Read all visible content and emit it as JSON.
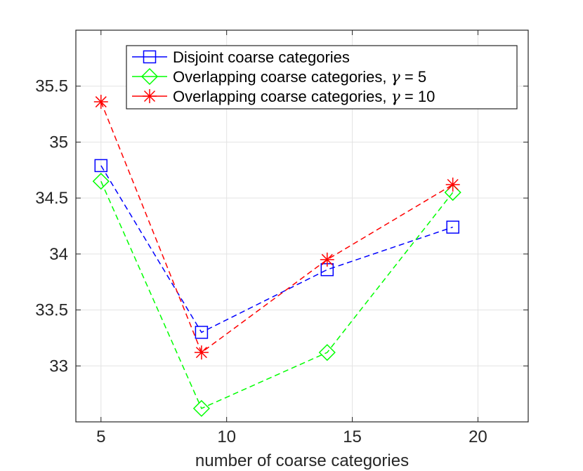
{
  "chart_data": {
    "type": "line",
    "title": "",
    "xlabel": "number of coarse categories",
    "ylabel": "",
    "xlim": [
      4,
      22
    ],
    "ylim": [
      32.5,
      36
    ],
    "xticks": [
      5,
      10,
      15,
      20
    ],
    "xtick_labels": [
      "5",
      "10",
      "15",
      "20"
    ],
    "yticks": [
      33,
      33.5,
      34,
      34.5,
      35,
      35.5
    ],
    "ytick_labels": [
      "33",
      "33.5",
      "34",
      "34.5",
      "35",
      "35.5"
    ],
    "grid": true,
    "legend_position": "top-right",
    "series": [
      {
        "name": "Disjoint coarse categories",
        "legend_label": "Disjoint coarse categories",
        "legend_gamma": "",
        "color": "#0000ff",
        "marker": "square",
        "x": [
          5,
          9,
          14,
          19
        ],
        "values": [
          34.79,
          33.3,
          33.86,
          34.24
        ]
      },
      {
        "name": "Overlapping coarse categories, γ = 5",
        "legend_label": "Overlapping coarse categories, ",
        "legend_gamma": "γ",
        "legend_suffix": " = 5",
        "color": "#00ff00",
        "marker": "diamond",
        "x": [
          5,
          9,
          14,
          19
        ],
        "values": [
          34.65,
          32.62,
          33.12,
          34.55
        ]
      },
      {
        "name": "Overlapping coarse categories, γ = 10",
        "legend_label": "Overlapping coarse categories, ",
        "legend_gamma": "γ",
        "legend_suffix": " = 10",
        "color": "#ff0000",
        "marker": "asterisk",
        "x": [
          5,
          9,
          14,
          19
        ],
        "values": [
          35.36,
          33.12,
          33.95,
          34.62
        ]
      }
    ]
  }
}
